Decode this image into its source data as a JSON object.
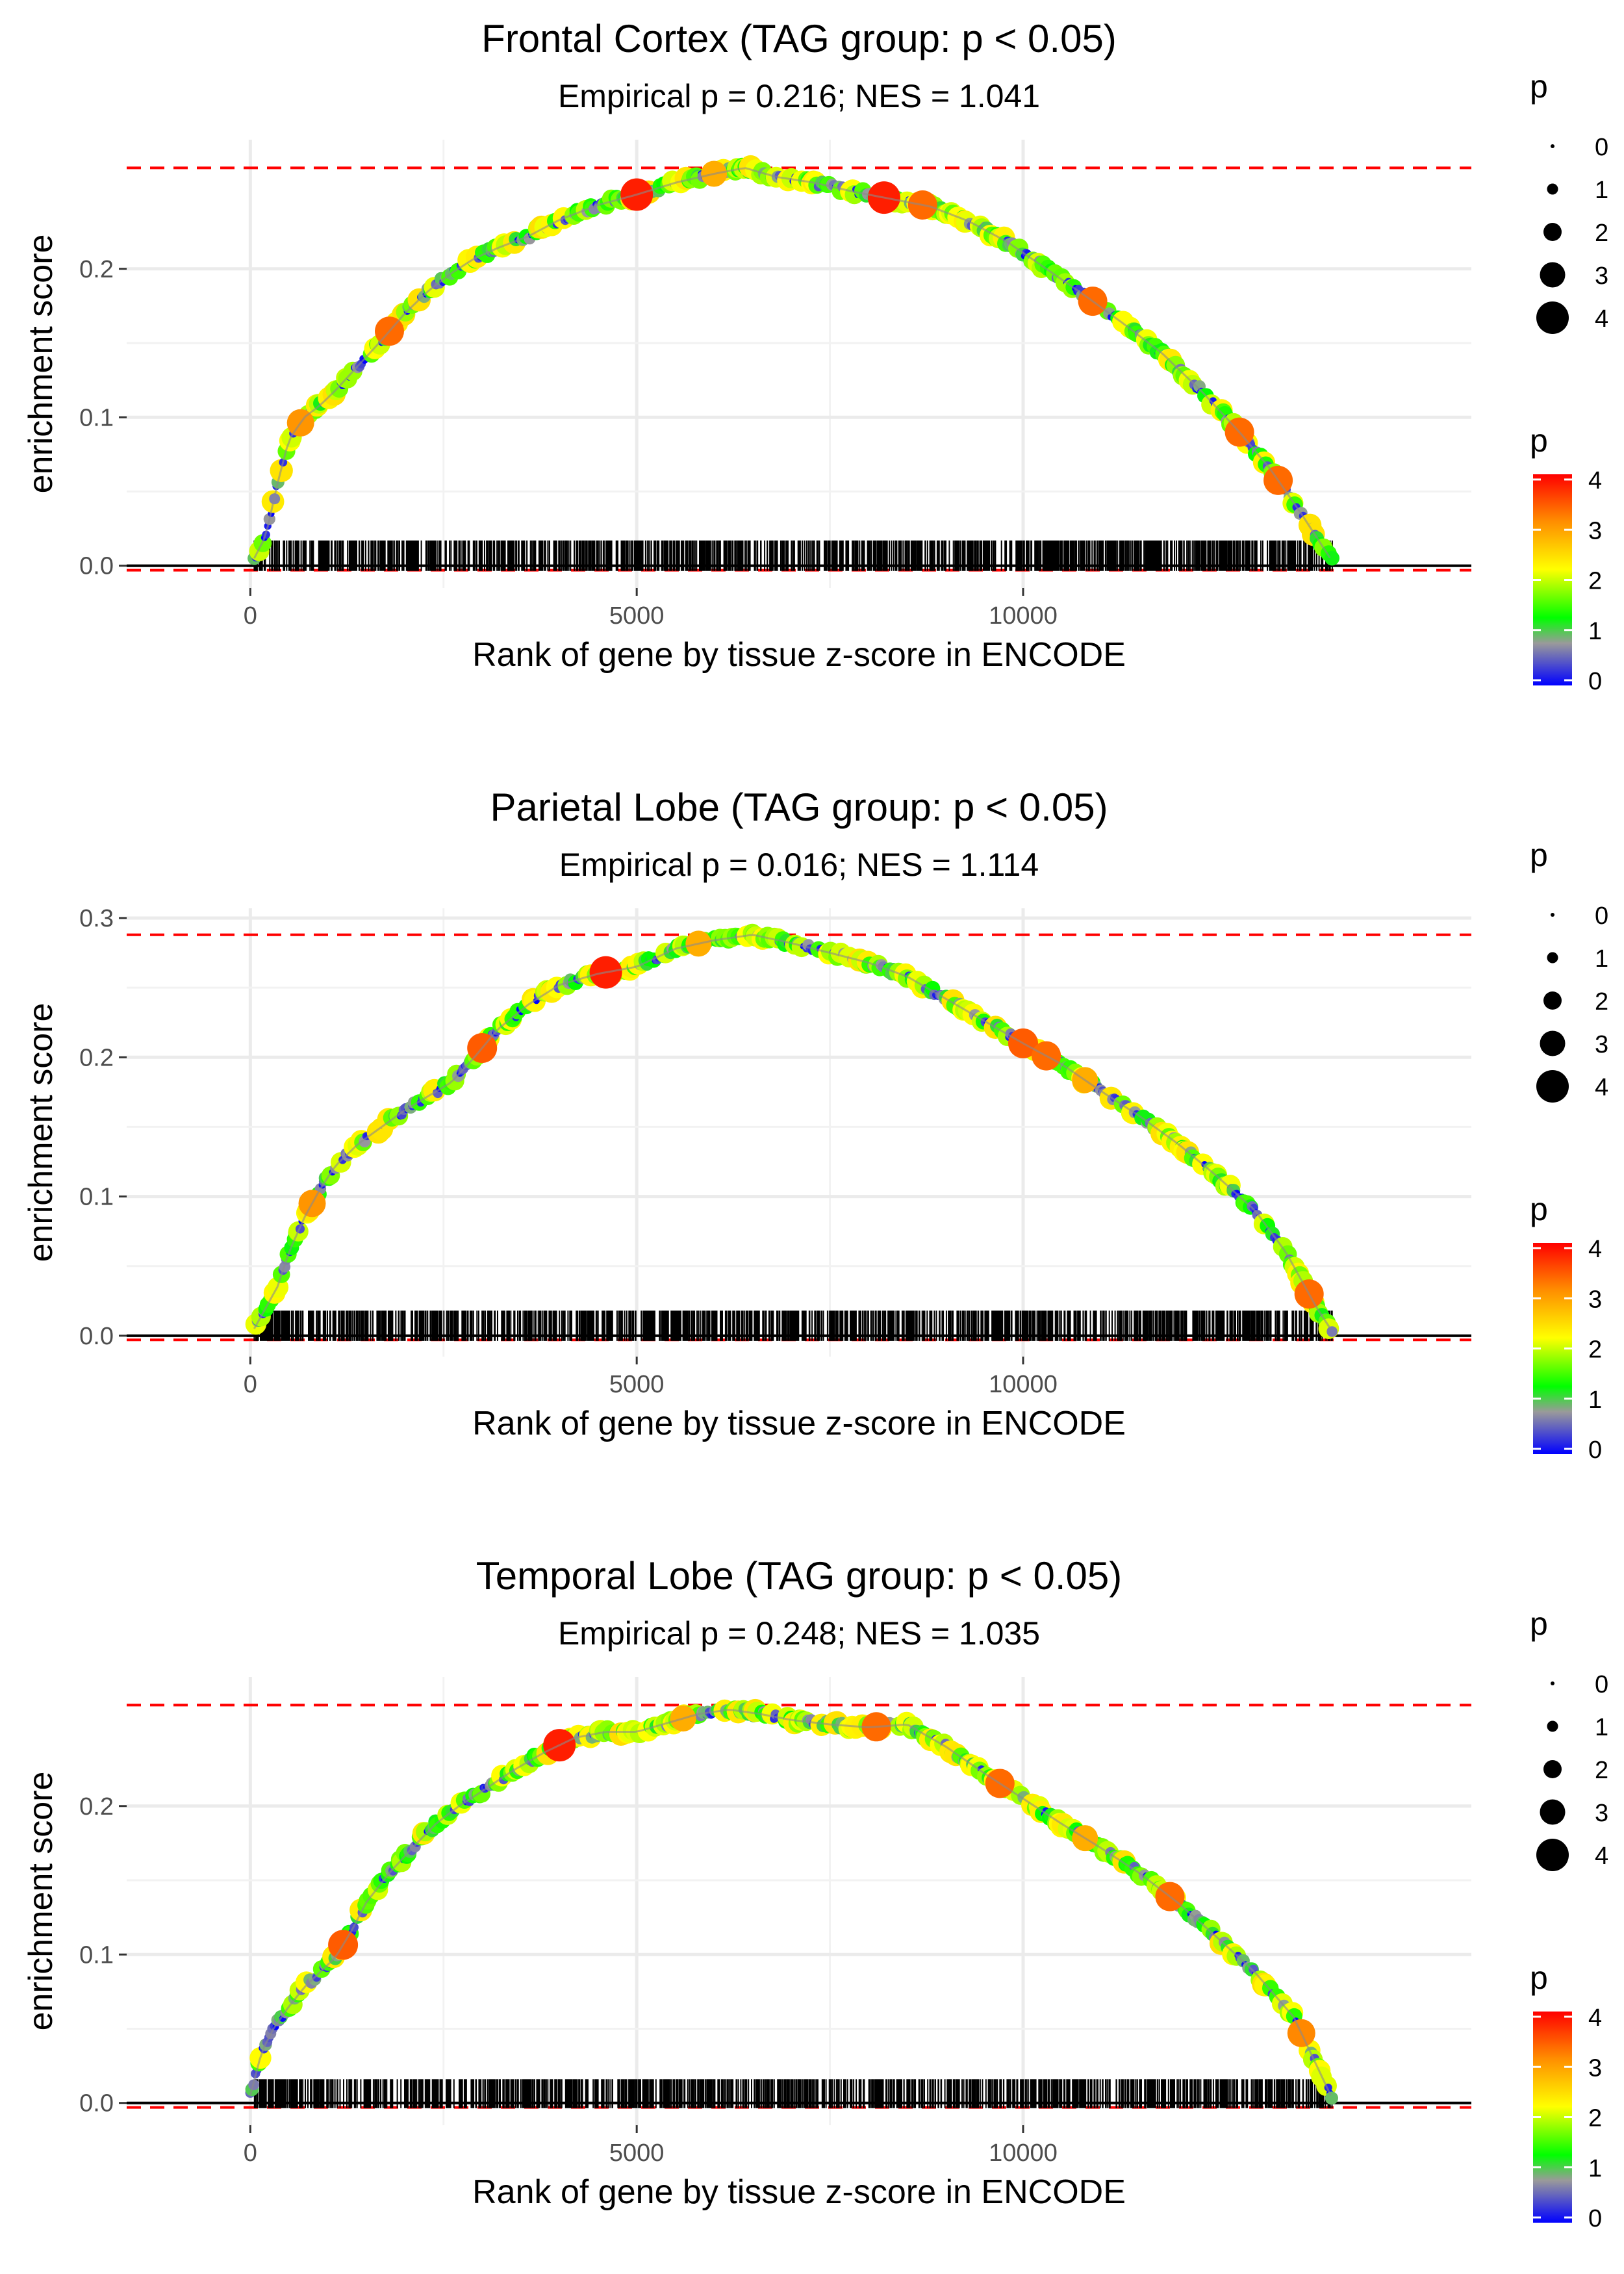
{
  "chart_data": [
    {
      "type": "line",
      "title": "Frontal Cortex (TAG group: p < 0.05)",
      "subtitle": "Empirical p = 0.216; NES = 1.041",
      "xlabel": "Rank of gene by tissue z-score in ENCODE",
      "ylabel": "enrichment score",
      "xlim": [
        -1600,
        15800
      ],
      "ylim": [
        -0.015,
        0.287
      ],
      "xticks": [
        0,
        5000,
        10000
      ],
      "xtick_labels": [
        "0",
        "5000",
        "10000"
      ],
      "yticks": [
        0.0,
        0.1,
        0.2
      ],
      "ytick_labels": [
        "0.0",
        "0.1",
        "0.2"
      ],
      "max_es": 0.268,
      "min_es": -0.003,
      "rug_height": 0.017,
      "curve": {
        "x": [
          50,
          200,
          350,
          500,
          700,
          900,
          1100,
          1400,
          1700,
          2000,
          2300,
          2600,
          2900,
          3200,
          3600,
          4000,
          4500,
          5000,
          5500,
          6000,
          6400,
          6800,
          7300,
          7800,
          8300,
          8800,
          9300,
          9800,
          10300,
          10800,
          11300,
          11800,
          12300,
          12800,
          13200,
          13600,
          14000
        ],
        "y": [
          0.005,
          0.02,
          0.055,
          0.085,
          0.1,
          0.108,
          0.118,
          0.135,
          0.152,
          0.17,
          0.185,
          0.197,
          0.207,
          0.214,
          0.222,
          0.233,
          0.243,
          0.25,
          0.258,
          0.264,
          0.268,
          0.262,
          0.258,
          0.252,
          0.247,
          0.242,
          0.232,
          0.218,
          0.2,
          0.182,
          0.163,
          0.143,
          0.118,
          0.09,
          0.065,
          0.035,
          0.003
        ]
      },
      "big_points": [
        {
          "x": 5000,
          "p": 4
        },
        {
          "x": 8200,
          "p": 4
        },
        {
          "x": 1800,
          "p": 3.5
        },
        {
          "x": 12800,
          "p": 3.5
        },
        {
          "x": 13300,
          "p": 3.5
        },
        {
          "x": 10900,
          "p": 3.5
        },
        {
          "x": 8700,
          "p": 3.5
        },
        {
          "x": 650,
          "p": 3.2
        },
        {
          "x": 6000,
          "p": 3
        }
      ],
      "point_legend": {
        "title": "p",
        "labels": [
          "0",
          "1",
          "2",
          "3",
          "4"
        ]
      },
      "color_legend": {
        "title": "p",
        "labels": [
          "0",
          "1",
          "2",
          "3",
          "4"
        ]
      }
    },
    {
      "type": "line",
      "title": "Parietal Lobe (TAG group: p < 0.05)",
      "subtitle": "Empirical p = 0.016; NES = 1.114",
      "xlabel": "Rank of gene by tissue z-score in ENCODE",
      "ylabel": "enrichment score",
      "xlim": [
        -1600,
        15800
      ],
      "ylim": [
        -0.015,
        0.307
      ],
      "xticks": [
        0,
        5000,
        10000
      ],
      "xtick_labels": [
        "0",
        "5000",
        "10000"
      ],
      "yticks": [
        0.0,
        0.1,
        0.2,
        0.3
      ],
      "ytick_labels": [
        "0.0",
        "0.1",
        "0.2",
        "0.3"
      ],
      "max_es": 0.288,
      "min_es": -0.003,
      "rug_height": 0.018,
      "curve": {
        "x": [
          50,
          200,
          350,
          500,
          700,
          900,
          1100,
          1400,
          1700,
          2000,
          2300,
          2600,
          2900,
          3200,
          3600,
          4000,
          4500,
          5000,
          5500,
          6000,
          6500,
          7000,
          7500,
          8000,
          8500,
          9000,
          9500,
          10000,
          10500,
          11000,
          11500,
          12000,
          12500,
          13000,
          13400,
          13800,
          14000
        ],
        "y": [
          0.005,
          0.02,
          0.035,
          0.06,
          0.085,
          0.105,
          0.122,
          0.138,
          0.15,
          0.162,
          0.172,
          0.182,
          0.2,
          0.22,
          0.238,
          0.252,
          0.26,
          0.265,
          0.278,
          0.284,
          0.288,
          0.282,
          0.275,
          0.268,
          0.258,
          0.242,
          0.226,
          0.21,
          0.195,
          0.176,
          0.158,
          0.138,
          0.115,
          0.09,
          0.06,
          0.02,
          0.003
        ]
      },
      "big_points": [
        {
          "x": 4600,
          "p": 4
        },
        {
          "x": 3000,
          "p": 3.6
        },
        {
          "x": 10000,
          "p": 3.6
        },
        {
          "x": 10300,
          "p": 3.5
        },
        {
          "x": 13700,
          "p": 3.5
        },
        {
          "x": 800,
          "p": 3.2
        },
        {
          "x": 5800,
          "p": 3
        },
        {
          "x": 10800,
          "p": 3
        }
      ],
      "point_legend": {
        "title": "p",
        "labels": [
          "0",
          "1",
          "2",
          "3",
          "4"
        ]
      },
      "color_legend": {
        "title": "p",
        "labels": [
          "0",
          "1",
          "2",
          "3",
          "4"
        ]
      }
    },
    {
      "type": "line",
      "title": "Temporal Lobe (TAG group: p < 0.05)",
      "subtitle": "Empirical p = 0.248; NES = 1.035",
      "xlabel": "Rank of gene by tissue z-score in ENCODE",
      "ylabel": "enrichment score",
      "xlim": [
        -1600,
        15800
      ],
      "ylim": [
        -0.015,
        0.287
      ],
      "xticks": [
        0,
        5000,
        10000
      ],
      "xtick_labels": [
        "0",
        "5000",
        "10000"
      ],
      "yticks": [
        0.0,
        0.1,
        0.2
      ],
      "ytick_labels": [
        "0.0",
        "0.1",
        "0.2"
      ],
      "max_es": 0.268,
      "min_es": -0.003,
      "rug_height": 0.016,
      "curve": {
        "x": [
          0,
          150,
          300,
          500,
          700,
          900,
          1100,
          1300,
          1500,
          1800,
          2100,
          2400,
          2700,
          3000,
          3400,
          3800,
          4200,
          4600,
          5000,
          5400,
          5800,
          6200,
          6600,
          7000,
          7500,
          8000,
          8500,
          9000,
          9500,
          10000,
          10500,
          11000,
          11500,
          12000,
          12500,
          13000,
          13500,
          13800,
          14000
        ],
        "y": [
          0.005,
          0.035,
          0.05,
          0.065,
          0.078,
          0.088,
          0.098,
          0.115,
          0.135,
          0.155,
          0.172,
          0.188,
          0.2,
          0.21,
          0.224,
          0.236,
          0.246,
          0.25,
          0.25,
          0.256,
          0.262,
          0.265,
          0.262,
          0.258,
          0.255,
          0.253,
          0.255,
          0.24,
          0.222,
          0.205,
          0.188,
          0.172,
          0.155,
          0.135,
          0.112,
          0.088,
          0.058,
          0.025,
          0.003
        ]
      },
      "big_points": [
        {
          "x": 4000,
          "p": 4
        },
        {
          "x": 1200,
          "p": 3.6
        },
        {
          "x": 8100,
          "p": 3.5
        },
        {
          "x": 9700,
          "p": 3.5
        },
        {
          "x": 11900,
          "p": 3.5
        },
        {
          "x": 13600,
          "p": 3.3
        },
        {
          "x": 10800,
          "p": 3
        },
        {
          "x": 5600,
          "p": 3
        }
      ],
      "point_legend": {
        "title": "p",
        "labels": [
          "0",
          "1",
          "2",
          "3",
          "4"
        ]
      },
      "color_legend": {
        "title": "p",
        "labels": [
          "0",
          "1",
          "2",
          "3",
          "4"
        ]
      }
    }
  ]
}
